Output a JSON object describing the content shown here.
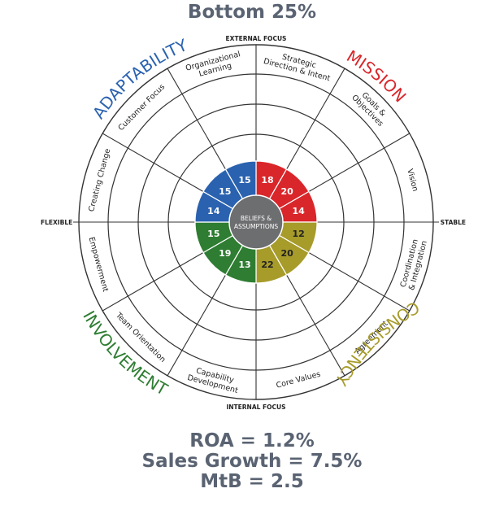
{
  "title": "Bottom 25%",
  "axes": {
    "top": "EXTERNAL FOCUS",
    "bottom": "INTERNAL FOCUS",
    "left": "FLEXIBLE",
    "right": "STABLE"
  },
  "center": {
    "line1": "BELIEFS &",
    "line2": "ASSUMPTIONS"
  },
  "traits": {
    "adaptability": {
      "label": "ADAPTABILITY",
      "color": "#2a62b0"
    },
    "mission": {
      "label": "MISSION",
      "color": "#d9262b"
    },
    "consistency": {
      "label": "CONSISTENCY",
      "color": "#a79b2a"
    },
    "involvement": {
      "label": "INVOLVEMENT",
      "color": "#2e7d32"
    }
  },
  "segments": [
    {
      "label": "Strategic Direction & Intent",
      "lines": [
        "Strategic",
        "Direction & Intent"
      ],
      "value": "18",
      "trait": "mission"
    },
    {
      "label": "Goals & Objectives",
      "lines": [
        "Goals &",
        "Objectives"
      ],
      "value": "20",
      "trait": "mission"
    },
    {
      "label": "Vision",
      "lines": [
        "Vision"
      ],
      "value": "14",
      "trait": "mission"
    },
    {
      "label": "Coordination & Integration",
      "lines": [
        "Coordination",
        "& Integration"
      ],
      "value": "12",
      "trait": "consistency"
    },
    {
      "label": "Agreement",
      "lines": [
        "Agreement"
      ],
      "value": "20",
      "trait": "consistency"
    },
    {
      "label": "Core Values",
      "lines": [
        "Core Values"
      ],
      "value": "22",
      "trait": "consistency"
    },
    {
      "label": "Capability Development",
      "lines": [
        "Capability",
        "Development"
      ],
      "value": "13",
      "trait": "involvement"
    },
    {
      "label": "Team Orientation",
      "lines": [
        "Team Orientation"
      ],
      "value": "19",
      "trait": "involvement"
    },
    {
      "label": "Empowerment",
      "lines": [
        "Empowerment"
      ],
      "value": "15",
      "trait": "involvement"
    },
    {
      "label": "Creating Change",
      "lines": [
        "Creating Change"
      ],
      "value": "14",
      "trait": "adaptability"
    },
    {
      "label": "Customer Focus",
      "lines": [
        "Customer Focus"
      ],
      "value": "15",
      "trait": "adaptability"
    },
    {
      "label": "Organizational Learning",
      "lines": [
        "Organizational",
        "Learning"
      ],
      "value": "15",
      "trait": "adaptability"
    }
  ],
  "stats": {
    "roa": "ROA = 1.2%",
    "sales": "Sales Growth = 7.5%",
    "mtb": "MtB = 2.5"
  }
}
